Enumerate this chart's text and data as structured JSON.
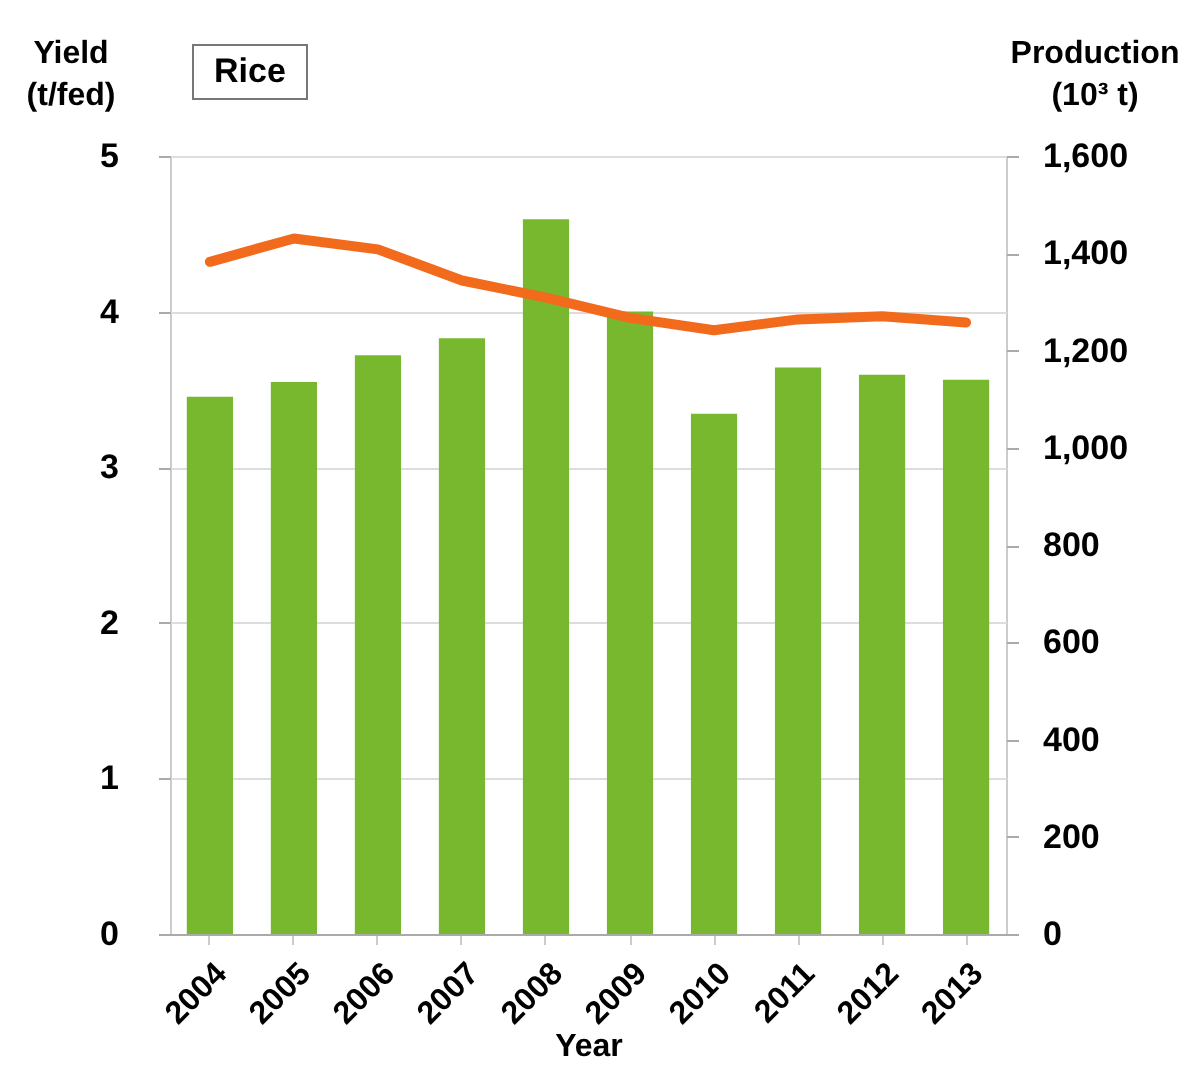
{
  "chart_data": {
    "type": "bar",
    "title": "Rice",
    "xlabel": "Year",
    "ylabel": "Yield (t/fed)",
    "y2label": "Production (10³ t)",
    "categories": [
      "2004",
      "2005",
      "2006",
      "2007",
      "2008",
      "2009",
      "2010",
      "2011",
      "2012",
      "2013"
    ],
    "series": [
      {
        "axis": "y2",
        "color": "#77b82f",
        "values": [
          1105,
          1135,
          1190,
          1225,
          1470,
          1280,
          1070,
          1165,
          1150,
          1140
        ]
      },
      {
        "type": "line",
        "axis": "y",
        "color": "#f26a1b",
        "values": [
          4.32,
          4.47,
          4.4,
          4.2,
          4.09,
          3.96,
          3.88,
          3.95,
          3.97,
          3.93
        ]
      }
    ],
    "ylim": [
      0,
      5
    ],
    "yticks": [
      0,
      1,
      2,
      3,
      4,
      5
    ],
    "y2lim": [
      0,
      1600
    ],
    "y2ticks": [
      0,
      200,
      400,
      600,
      800,
      {
        "value": 1000,
        "label": "1,000"
      },
      {
        "value": 1200,
        "label": "1,200"
      },
      {
        "value": 1400,
        "label": "1,400"
      },
      {
        "value": 1600,
        "label": "1,600"
      }
    ],
    "grid": "y"
  }
}
